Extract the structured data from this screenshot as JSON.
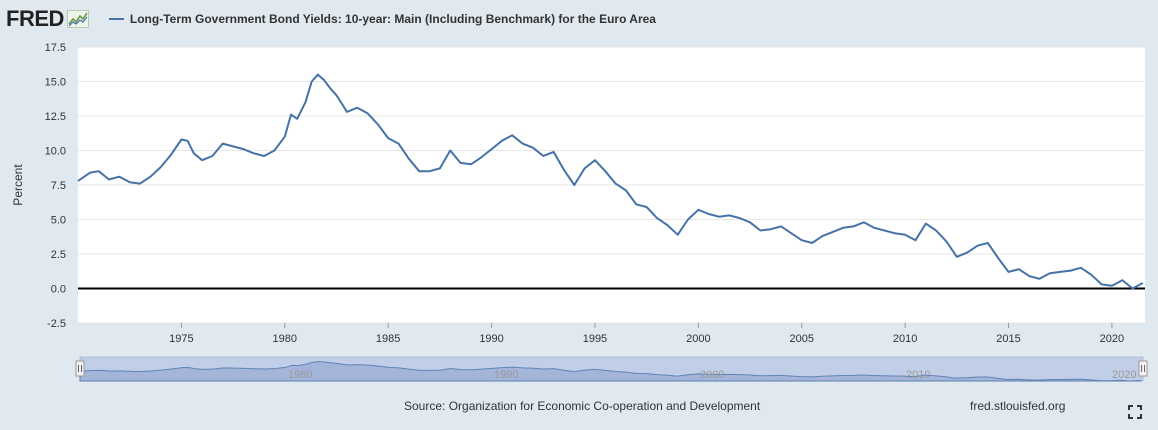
{
  "header": {
    "logo_text": "FRED",
    "logo_icon": "trend-graph-icon",
    "legend_label": "Long-Term Government Bond Yields: 10-year: Main (Including Benchmark) for the Euro Area"
  },
  "footer": {
    "source": "Source: Organization for Economic Co-operation and Development",
    "site": "fred.stlouisfed.org",
    "expand_icon": "fullscreen-icon"
  },
  "navigator": {
    "labels": [
      "1980",
      "1990",
      "2000",
      "2010",
      "2020"
    ]
  },
  "colors": {
    "series": "#4572a7",
    "background": "#e1e9f0",
    "plot": "#ffffff",
    "navigator_fill": "#b8c6e0"
  },
  "chart_data": {
    "type": "line",
    "title": "Long-Term Government Bond Yields: 10-year: Main (Including Benchmark) for the Euro Area",
    "xlabel": "",
    "ylabel": "Percent",
    "xlim": [
      1970,
      2021.6
    ],
    "ylim": [
      -2.5,
      17.5
    ],
    "yticks": [
      -2.5,
      0.0,
      2.5,
      5.0,
      7.5,
      10.0,
      12.5,
      15.0,
      17.5
    ],
    "ytick_labels": [
      "-2.5",
      "0.0",
      "2.5",
      "5.0",
      "7.5",
      "10.0",
      "12.5",
      "15.0",
      "17.5"
    ],
    "xticks": [
      1975,
      1980,
      1985,
      1990,
      1995,
      2000,
      2005,
      2010,
      2015,
      2020
    ],
    "xtick_labels": [
      "1975",
      "1980",
      "1985",
      "1990",
      "1995",
      "2000",
      "2005",
      "2010",
      "2015",
      "2020"
    ],
    "grid": true,
    "zero_line": true,
    "series": [
      {
        "name": "Long-Term Government Bond Yields: 10-year: Main (Including Benchmark) for the Euro Area",
        "x": [
          1970,
          1970.3,
          1970.6,
          1971,
          1971.5,
          1972,
          1972.5,
          1973,
          1973.5,
          1974,
          1974.5,
          1975,
          1975.3,
          1975.6,
          1976,
          1976.5,
          1977,
          1977.5,
          1978,
          1978.5,
          1979,
          1979.5,
          1980,
          1980.3,
          1980.6,
          1981,
          1981.3,
          1981.6,
          1981.9,
          1982.2,
          1982.5,
          1982.8,
          1983,
          1983.5,
          1984,
          1984.5,
          1985,
          1985.5,
          1986,
          1986.5,
          1987,
          1987.5,
          1988,
          1988.5,
          1989,
          1989.5,
          1990,
          1990.5,
          1991,
          1991.5,
          1992,
          1992.5,
          1993,
          1993.5,
          1994,
          1994.5,
          1995,
          1995.5,
          1996,
          1996.5,
          1997,
          1997.5,
          1998,
          1998.5,
          1999,
          1999.5,
          2000,
          2000.5,
          2001,
          2001.5,
          2002,
          2002.5,
          2003,
          2003.5,
          2004,
          2004.5,
          2005,
          2005.5,
          2006,
          2006.5,
          2007,
          2007.5,
          2008,
          2008.5,
          2009,
          2009.5,
          2010,
          2010.5,
          2011,
          2011.5,
          2012,
          2012.5,
          2013,
          2013.5,
          2014,
          2014.5,
          2015,
          2015.5,
          2016,
          2016.5,
          2017,
          2017.5,
          2018,
          2018.5,
          2019,
          2019.5,
          2020,
          2020.5,
          2021,
          2021.5
        ],
        "values": [
          7.8,
          8.1,
          8.4,
          8.5,
          7.9,
          8.1,
          7.7,
          7.6,
          8.1,
          8.8,
          9.7,
          10.8,
          10.7,
          9.8,
          9.3,
          9.6,
          10.5,
          10.3,
          10.1,
          9.8,
          9.6,
          10.0,
          11.0,
          12.6,
          12.3,
          13.5,
          15.0,
          15.5,
          15.1,
          14.5,
          14.0,
          13.3,
          12.8,
          13.1,
          12.7,
          11.9,
          10.9,
          10.5,
          9.4,
          8.5,
          8.5,
          8.7,
          10.0,
          9.1,
          9.0,
          9.5,
          10.1,
          10.7,
          11.1,
          10.5,
          10.2,
          9.6,
          9.9,
          8.6,
          7.5,
          8.7,
          9.3,
          8.5,
          7.6,
          7.1,
          6.1,
          5.9,
          5.1,
          4.6,
          3.9,
          5.0,
          5.7,
          5.4,
          5.2,
          5.3,
          5.1,
          4.8,
          4.2,
          4.3,
          4.5,
          4.0,
          3.5,
          3.3,
          3.8,
          4.1,
          4.4,
          4.5,
          4.8,
          4.4,
          4.2,
          4.0,
          3.9,
          3.5,
          4.7,
          4.2,
          3.4,
          2.3,
          2.6,
          3.1,
          3.3,
          2.2,
          1.2,
          1.4,
          0.9,
          0.7,
          1.1,
          1.2,
          1.3,
          1.5,
          1.0,
          0.3,
          0.2,
          0.6,
          0.0,
          0.4
        ]
      }
    ]
  }
}
